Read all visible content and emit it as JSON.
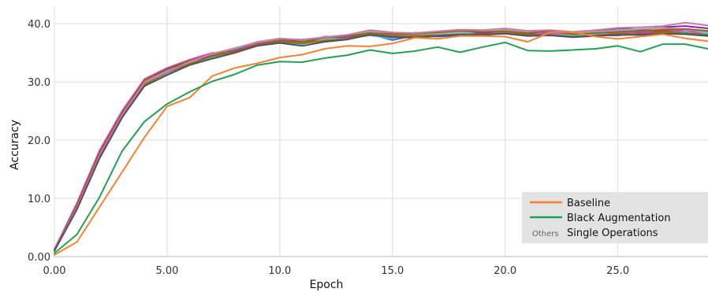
{
  "chart_data": {
    "type": "line",
    "xlabel": "Epoch",
    "ylabel": "Accuracy",
    "xlim": [
      0,
      29
    ],
    "ylim": [
      0,
      43
    ],
    "xticks": [
      0,
      5,
      10,
      15,
      20,
      25
    ],
    "xtick_labels": [
      "0.00",
      "5.00",
      "10.0",
      "15.0",
      "20.0",
      "25.0"
    ],
    "yticks": [
      0,
      10,
      20,
      30,
      40
    ],
    "ytick_labels": [
      "0.00",
      "10.0",
      "20.0",
      "30.0",
      "40.0"
    ],
    "grid": true,
    "legend": {
      "placement": "bottom-right",
      "entries": [
        {
          "label": "Baseline",
          "color": "#f58231",
          "marker": "line"
        },
        {
          "label": "Black Augmentation",
          "color": "#22a055",
          "marker": "line"
        },
        {
          "label": "Single Operations",
          "prefix": "Others",
          "marker": "text"
        }
      ]
    },
    "x": [
      0,
      1,
      2,
      3,
      4,
      5,
      6,
      7,
      8,
      9,
      10,
      11,
      12,
      13,
      14,
      15,
      16,
      17,
      18,
      19,
      20,
      21,
      22,
      23,
      24,
      25,
      26,
      27,
      28,
      29
    ],
    "series": [
      {
        "color": "#3cb44b",
        "values": [
          1.0,
          8.5,
          17.5,
          24.5,
          30.0,
          32.0,
          33.5,
          34.8,
          35.5,
          36.5,
          37.0,
          36.8,
          37.5,
          37.8,
          38.5,
          38.0,
          38.0,
          38.2,
          38.5,
          38.5,
          39.0,
          38.5,
          38.5,
          38.2,
          38.5,
          38.8,
          38.8,
          39.0,
          38.8,
          38.5
        ]
      },
      {
        "color": "#e6194b",
        "values": [
          1.2,
          9.0,
          18.0,
          24.8,
          30.2,
          32.2,
          33.6,
          34.5,
          35.0,
          36.5,
          36.8,
          37.0,
          37.2,
          37.5,
          38.5,
          38.2,
          37.8,
          38.0,
          38.3,
          38.0,
          38.5,
          38.2,
          38.0,
          38.0,
          38.2,
          38.5,
          38.5,
          38.8,
          38.5,
          38.0
        ]
      },
      {
        "color": "#4363d8",
        "values": [
          1.1,
          8.8,
          17.2,
          24.2,
          29.8,
          31.8,
          33.2,
          34.5,
          35.6,
          36.8,
          36.9,
          37.0,
          37.5,
          37.6,
          38.2,
          37.2,
          38.0,
          37.8,
          38.0,
          38.5,
          39.0,
          38.0,
          38.3,
          38.1,
          38.0,
          38.0,
          38.3,
          38.5,
          38.7,
          38.2
        ]
      },
      {
        "color": "#42d4f4",
        "values": [
          1.3,
          8.2,
          16.8,
          23.8,
          29.5,
          31.5,
          33.0,
          34.2,
          35.3,
          36.6,
          36.8,
          36.5,
          37.3,
          37.5,
          38.0,
          37.5,
          38.5,
          38.2,
          38.4,
          38.6,
          38.5,
          38.0,
          38.2,
          38.0,
          38.3,
          38.2,
          38.0,
          38.4,
          38.6,
          38.4
        ]
      },
      {
        "color": "#911eb4",
        "values": [
          1.0,
          8.6,
          17.8,
          24.6,
          30.1,
          32.1,
          33.4,
          34.6,
          35.4,
          36.4,
          37.2,
          37.1,
          37.6,
          37.7,
          38.6,
          38.3,
          38.1,
          38.4,
          38.9,
          38.4,
          38.8,
          38.3,
          38.6,
          38.4,
          38.7,
          39.2,
          39.0,
          39.4,
          39.6,
          39.2
        ]
      },
      {
        "color": "#f032e6",
        "values": [
          1.2,
          9.2,
          18.2,
          25.0,
          30.5,
          32.4,
          33.8,
          35.0,
          35.2,
          36.7,
          37.0,
          36.9,
          37.8,
          37.8,
          38.8,
          38.4,
          38.0,
          38.6,
          38.7,
          38.8,
          38.6,
          38.5,
          38.4,
          38.3,
          38.5,
          38.4,
          38.6,
          38.4,
          38.9,
          38.0
        ]
      },
      {
        "color": "#a9a9a9",
        "values": [
          1.1,
          8.7,
          17.6,
          24.4,
          30.0,
          31.9,
          33.3,
          34.9,
          35.7,
          36.9,
          37.5,
          37.2,
          37.4,
          38.0,
          38.7,
          38.1,
          38.2,
          38.3,
          38.6,
          38.7,
          38.9,
          38.6,
          38.7,
          38.5,
          38.6,
          38.9,
          39.1,
          39.3,
          39.0,
          38.7
        ]
      },
      {
        "color": "#808000",
        "values": [
          1.0,
          8.3,
          17.0,
          24.0,
          29.6,
          31.6,
          33.1,
          34.4,
          35.2,
          36.3,
          36.9,
          36.6,
          37.1,
          37.4,
          38.3,
          37.9,
          37.9,
          38.0,
          38.2,
          38.2,
          38.4,
          38.1,
          38.1,
          37.8,
          38.0,
          38.3,
          38.2,
          38.6,
          38.4,
          38.1
        ]
      },
      {
        "color": "#9a6324",
        "values": [
          1.2,
          8.9,
          17.9,
          24.7,
          30.3,
          32.3,
          33.7,
          34.7,
          35.3,
          36.5,
          37.1,
          36.9,
          37.6,
          37.9,
          38.4,
          38.2,
          38.3,
          38.5,
          38.8,
          38.6,
          38.7,
          38.4,
          38.8,
          38.2,
          38.4,
          38.6,
          38.7,
          39.0,
          39.1,
          38.8
        ]
      },
      {
        "color": "#c77da8",
        "values": [
          1.1,
          8.4,
          17.3,
          24.3,
          29.9,
          31.7,
          33.5,
          34.8,
          35.8,
          36.8,
          37.4,
          37.3,
          37.7,
          38.1,
          38.9,
          38.5,
          38.4,
          38.7,
          39.0,
          38.9,
          39.2,
          38.8,
          38.9,
          38.6,
          38.9,
          39.3,
          39.4,
          39.6,
          40.2,
          39.7
        ]
      },
      {
        "color": "#5a4a6a",
        "values": [
          1.0,
          8.1,
          16.9,
          23.9,
          29.3,
          31.2,
          32.9,
          34.0,
          35.0,
          36.2,
          36.7,
          36.2,
          36.9,
          37.3,
          38.1,
          37.7,
          37.6,
          37.9,
          38.1,
          38.1,
          38.3,
          37.9,
          38.0,
          37.7,
          37.9,
          38.1,
          38.1,
          38.3,
          38.2,
          37.9
        ]
      },
      {
        "color": "#f58231",
        "values": [
          0.3,
          2.5,
          8.5,
          14.5,
          20.5,
          25.8,
          27.3,
          31.0,
          32.4,
          33.2,
          34.2,
          34.7,
          35.7,
          36.2,
          36.1,
          36.6,
          37.6,
          37.4,
          37.9,
          37.9,
          37.8,
          36.9,
          38.5,
          38.6,
          37.8,
          37.4,
          37.8,
          38.2,
          37.5,
          37.0
        ]
      },
      {
        "color": "#22a055",
        "values": [
          0.6,
          3.8,
          10.2,
          18.1,
          23.2,
          26.2,
          28.3,
          30.1,
          31.3,
          32.9,
          33.5,
          33.4,
          34.1,
          34.6,
          35.5,
          34.9,
          35.3,
          36.0,
          35.1,
          36.0,
          36.8,
          35.4,
          35.3,
          35.5,
          35.7,
          36.2,
          35.2,
          36.5,
          36.5,
          35.7
        ]
      }
    ]
  }
}
